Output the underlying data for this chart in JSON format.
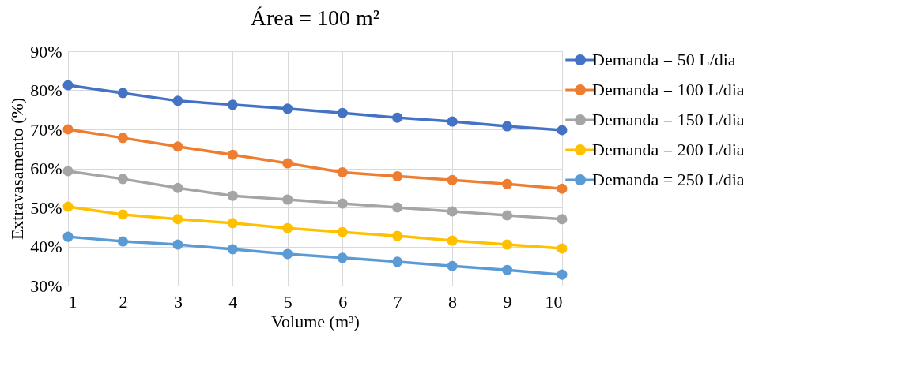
{
  "chart_data": {
    "type": "line",
    "title": "Área = 100 m²",
    "xlabel": "Volume (m³)",
    "ylabel": "Extravasamento (%)",
    "x": [
      1,
      2,
      3,
      4,
      5,
      6,
      7,
      8,
      9,
      10
    ],
    "series": [
      {
        "name": "Demanda = 50 L/dia",
        "color": "#4472c4",
        "values": [
          81.3,
          79.3,
          77.3,
          76.3,
          75.3,
          74.2,
          73.0,
          72.0,
          70.8,
          69.8
        ]
      },
      {
        "name": "Demanda = 100 L/dia",
        "color": "#ed7d31",
        "values": [
          70.0,
          67.8,
          65.6,
          63.5,
          61.3,
          59.0,
          58.0,
          57.0,
          56.0,
          54.8
        ]
      },
      {
        "name": "Demanda = 150 L/dia",
        "color": "#a5a5a5",
        "values": [
          59.3,
          57.3,
          55.0,
          53.0,
          52.0,
          51.0,
          50.0,
          49.0,
          48.0,
          47.0
        ]
      },
      {
        "name": "Demanda = 200 L/dia",
        "color": "#ffc000",
        "values": [
          50.2,
          48.2,
          47.0,
          46.0,
          44.7,
          43.7,
          42.7,
          41.5,
          40.5,
          39.5
        ]
      },
      {
        "name": "Demanda = 250 L/dia",
        "color": "#5b9bd5",
        "values": [
          42.5,
          41.3,
          40.5,
          39.3,
          38.1,
          37.1,
          36.1,
          35.0,
          34.0,
          32.8
        ]
      }
    ],
    "xlim": [
      1,
      10
    ],
    "xticks": [
      1,
      2,
      3,
      4,
      5,
      6,
      7,
      8,
      9,
      10
    ],
    "ylim": [
      30,
      90
    ],
    "yticks": [
      {
        "value": 30,
        "label": "30%"
      },
      {
        "value": 40,
        "label": "40%"
      },
      {
        "value": 50,
        "label": "50%"
      },
      {
        "value": 60,
        "label": "60%"
      },
      {
        "value": 70,
        "label": "70%"
      },
      {
        "value": 80,
        "label": "80%"
      },
      {
        "value": 90,
        "label": "90%"
      }
    ],
    "grid": true,
    "legend": "right",
    "marker": "circle",
    "line_style": "solid"
  }
}
